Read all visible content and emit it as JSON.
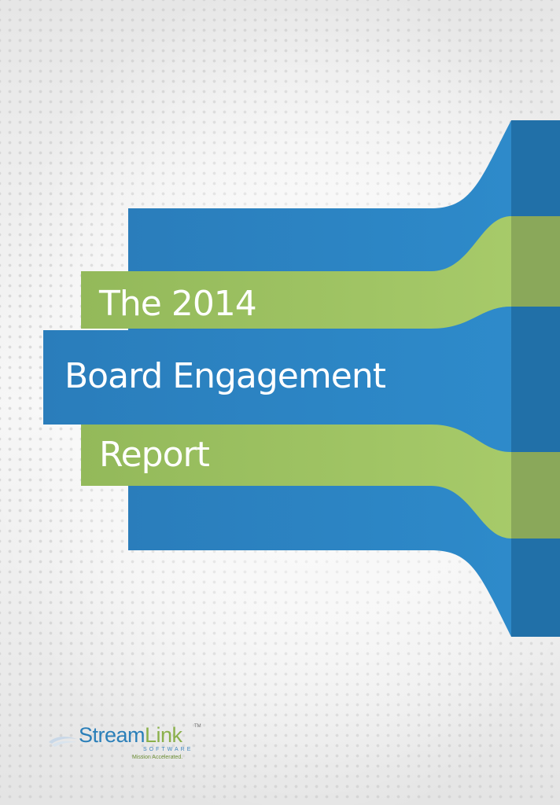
{
  "cover": {
    "title_lines": [
      "The 2014",
      "Board Engagement",
      "Report"
    ]
  },
  "logo": {
    "brand_part_1": "Stream",
    "brand_part_2": "Link",
    "trademark": "TM",
    "subtitle": "SOFTWARE",
    "tagline": "Mission Accelerated."
  },
  "colors": {
    "ribbon_blue": "#2b84c2",
    "ribbon_blue_dark": "#2170a8",
    "ribbon_green": "#9dc261",
    "ribbon_green_dark": "#8aa85a",
    "title_text": "#ffffff"
  }
}
